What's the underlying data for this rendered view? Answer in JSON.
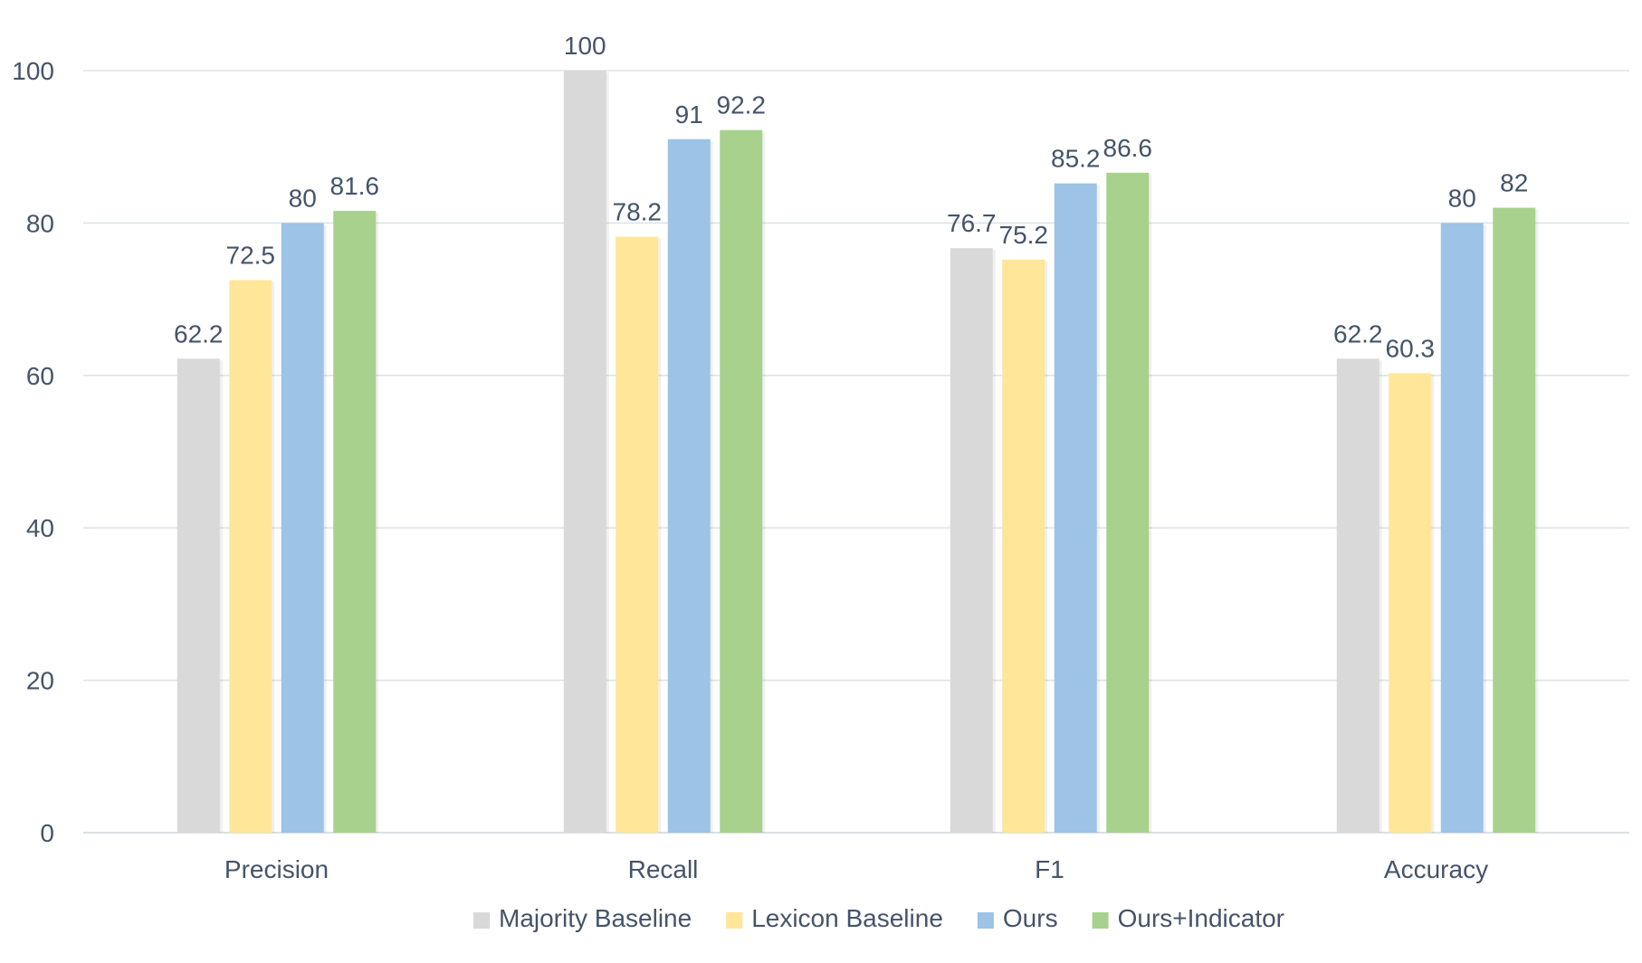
{
  "chart_data": {
    "type": "bar",
    "title": "",
    "xlabel": "",
    "ylabel": "",
    "categories": [
      "Precision",
      "Recall",
      "F1",
      "Accuracy"
    ],
    "ylim": [
      0,
      100
    ],
    "yticks": [
      0,
      20,
      40,
      60,
      80,
      100
    ],
    "grid": true,
    "legend_position": "bottom",
    "series": [
      {
        "name": "Majority Baseline",
        "color": "#d9d9d9",
        "values": [
          62.2,
          100,
          76.7,
          62.2
        ]
      },
      {
        "name": "Lexicon Baseline",
        "color": "#ffe699",
        "values": [
          72.5,
          78.2,
          75.2,
          60.3
        ]
      },
      {
        "name": "Ours",
        "color": "#9dc3e6",
        "values": [
          80,
          91,
          85.2,
          80
        ]
      },
      {
        "name": "Ours+Indicator",
        "color": "#a9d18e",
        "values": [
          81.6,
          92.2,
          86.6,
          82
        ]
      }
    ]
  }
}
